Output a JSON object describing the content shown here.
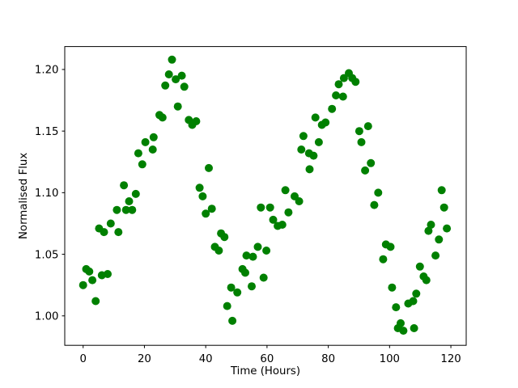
{
  "chart_data": {
    "type": "scatter",
    "title": "",
    "xlabel": "Time (Hours)",
    "ylabel": "Normalised Flux",
    "marker_color": "#008000",
    "marker_diameter_px": 10,
    "grid": false,
    "legend": null,
    "background_color": "#ffffff",
    "spine_color": "#000000",
    "xlim": [
      -6.0,
      125.0
    ],
    "ylim": [
      0.9761,
      1.2186
    ],
    "xticks": [
      0,
      20,
      40,
      60,
      80,
      100,
      120
    ],
    "xtick_labels": [
      "0",
      "20",
      "40",
      "60",
      "80",
      "100",
      "120"
    ],
    "yticks": [
      1.0,
      1.05,
      1.1,
      1.15,
      1.2
    ],
    "ytick_labels": [
      "1.00",
      "1.05",
      "1.10",
      "1.15",
      "1.20"
    ],
    "points": [
      [
        0.0,
        1.025
      ],
      [
        1.0,
        1.038
      ],
      [
        2.0,
        1.036
      ],
      [
        3.0,
        1.029
      ],
      [
        4.1,
        1.012
      ],
      [
        5.2,
        1.071
      ],
      [
        6.1,
        1.033
      ],
      [
        6.8,
        1.068
      ],
      [
        8.0,
        1.034
      ],
      [
        9.0,
        1.075
      ],
      [
        11.0,
        1.086
      ],
      [
        11.5,
        1.068
      ],
      [
        13.3,
        1.106
      ],
      [
        14.0,
        1.086
      ],
      [
        15.0,
        1.093
      ],
      [
        16.0,
        1.086
      ],
      [
        17.2,
        1.099
      ],
      [
        18.0,
        1.132
      ],
      [
        19.3,
        1.123
      ],
      [
        20.3,
        1.141
      ],
      [
        22.7,
        1.135
      ],
      [
        23.0,
        1.145
      ],
      [
        24.9,
        1.163
      ],
      [
        25.9,
        1.161
      ],
      [
        26.8,
        1.187
      ],
      [
        28.0,
        1.196
      ],
      [
        29.0,
        1.208
      ],
      [
        30.2,
        1.192
      ],
      [
        30.9,
        1.17
      ],
      [
        32.2,
        1.195
      ],
      [
        33.0,
        1.186
      ],
      [
        34.5,
        1.159
      ],
      [
        35.6,
        1.155
      ],
      [
        36.9,
        1.158
      ],
      [
        38.0,
        1.104
      ],
      [
        39.0,
        1.097
      ],
      [
        40.0,
        1.083
      ],
      [
        41.0,
        1.12
      ],
      [
        42.0,
        1.087
      ],
      [
        43.0,
        1.056
      ],
      [
        44.3,
        1.053
      ],
      [
        45.0,
        1.067
      ],
      [
        46.1,
        1.064
      ],
      [
        47.0,
        1.008
      ],
      [
        48.3,
        1.023
      ],
      [
        48.7,
        0.996
      ],
      [
        50.3,
        1.019
      ],
      [
        52.0,
        1.038
      ],
      [
        52.9,
        1.035
      ],
      [
        53.3,
        1.049
      ],
      [
        55.0,
        1.024
      ],
      [
        55.4,
        1.048
      ],
      [
        57.0,
        1.056
      ],
      [
        58.0,
        1.088
      ],
      [
        58.9,
        1.031
      ],
      [
        59.8,
        1.053
      ],
      [
        61.0,
        1.088
      ],
      [
        62.0,
        1.078
      ],
      [
        63.5,
        1.073
      ],
      [
        65.0,
        1.074
      ],
      [
        66.0,
        1.102
      ],
      [
        67.0,
        1.084
      ],
      [
        69.0,
        1.097
      ],
      [
        70.5,
        1.093
      ],
      [
        71.2,
        1.135
      ],
      [
        71.9,
        1.146
      ],
      [
        73.7,
        1.132
      ],
      [
        73.9,
        1.119
      ],
      [
        75.2,
        1.13
      ],
      [
        75.8,
        1.161
      ],
      [
        76.9,
        1.141
      ],
      [
        77.9,
        1.155
      ],
      [
        79.1,
        1.157
      ],
      [
        81.2,
        1.168
      ],
      [
        82.5,
        1.179
      ],
      [
        83.4,
        1.188
      ],
      [
        84.8,
        1.178
      ],
      [
        85.1,
        1.193
      ],
      [
        86.7,
        1.197
      ],
      [
        87.8,
        1.193
      ],
      [
        88.9,
        1.19
      ],
      [
        90.1,
        1.15
      ],
      [
        90.8,
        1.141
      ],
      [
        92.0,
        1.118
      ],
      [
        93.0,
        1.154
      ],
      [
        93.9,
        1.124
      ],
      [
        95.0,
        1.09
      ],
      [
        96.3,
        1.1
      ],
      [
        97.9,
        1.046
      ],
      [
        98.8,
        1.058
      ],
      [
        100.3,
        1.056
      ],
      [
        100.8,
        1.023
      ],
      [
        102.1,
        1.007
      ],
      [
        102.7,
        0.99
      ],
      [
        103.6,
        0.994
      ],
      [
        104.5,
        0.988
      ],
      [
        106.1,
        1.01
      ],
      [
        107.7,
        1.012
      ],
      [
        108.0,
        0.99
      ],
      [
        108.7,
        1.018
      ],
      [
        109.9,
        1.04
      ],
      [
        111.1,
        1.032
      ],
      [
        112.0,
        1.029
      ],
      [
        112.7,
        1.069
      ],
      [
        113.5,
        1.074
      ],
      [
        115.0,
        1.049
      ],
      [
        116.1,
        1.062
      ],
      [
        117.0,
        1.102
      ],
      [
        117.8,
        1.088
      ],
      [
        118.7,
        1.071
      ]
    ]
  }
}
